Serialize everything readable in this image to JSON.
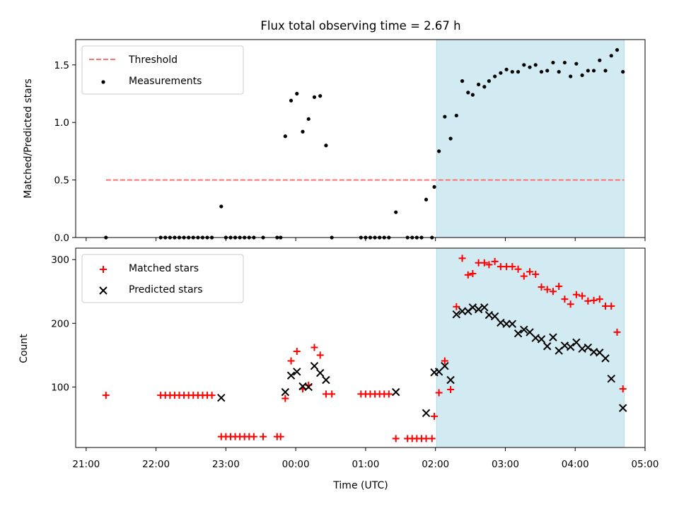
{
  "chart_data": [
    {
      "type": "scatter",
      "title": "Flux total observing time = 2.67 h",
      "xlabel": "",
      "ylabel": "Matched/Predicted stars",
      "ylim": [
        0,
        1.72
      ],
      "yticks": [
        0.0,
        0.5,
        1.0,
        1.5
      ],
      "ytick_labels": [
        "0.0",
        "0.5",
        "1.0",
        "1.5"
      ],
      "legend_position": "upper-left",
      "highlight_span": [
        "02:01",
        "04:42"
      ],
      "threshold": {
        "name": "Threshold",
        "value": 0.5,
        "x_range": [
          "21:17",
          "04:42"
        ],
        "color": "#ff7070",
        "style": "dashed"
      },
      "series": [
        {
          "name": "Measurements",
          "color": "#000000",
          "marker": "dot",
          "points": [
            [
              "21:17",
              0.0
            ],
            [
              "22:04",
              0.0
            ],
            [
              "22:08",
              0.0
            ],
            [
              "22:12",
              0.0
            ],
            [
              "22:16",
              0.0
            ],
            [
              "22:20",
              0.0
            ],
            [
              "22:24",
              0.0
            ],
            [
              "22:28",
              0.0
            ],
            [
              "22:32",
              0.0
            ],
            [
              "22:36",
              0.0
            ],
            [
              "22:40",
              0.0
            ],
            [
              "22:44",
              0.0
            ],
            [
              "22:48",
              0.0
            ],
            [
              "22:56",
              0.27
            ],
            [
              "23:00",
              0.0
            ],
            [
              "23:04",
              0.0
            ],
            [
              "23:08",
              0.0
            ],
            [
              "23:12",
              0.0
            ],
            [
              "23:16",
              0.0
            ],
            [
              "23:20",
              0.0
            ],
            [
              "23:24",
              0.0
            ],
            [
              "23:32",
              0.0
            ],
            [
              "23:44",
              0.0
            ],
            [
              "23:47",
              0.0
            ],
            [
              "23:51",
              0.88
            ],
            [
              "23:56",
              1.19
            ],
            [
              "00:01",
              1.25
            ],
            [
              "00:06",
              0.92
            ],
            [
              "00:11",
              1.03
            ],
            [
              "00:16",
              1.22
            ],
            [
              "00:21",
              1.23
            ],
            [
              "00:26",
              0.8
            ],
            [
              "00:31",
              0.0
            ],
            [
              "00:56",
              0.0
            ],
            [
              "01:00",
              0.0
            ],
            [
              "01:04",
              0.0
            ],
            [
              "01:08",
              0.0
            ],
            [
              "01:12",
              0.0
            ],
            [
              "01:16",
              0.0
            ],
            [
              "01:20",
              0.0
            ],
            [
              "01:26",
              0.22
            ],
            [
              "01:36",
              0.0
            ],
            [
              "01:40",
              0.0
            ],
            [
              "01:44",
              0.0
            ],
            [
              "01:48",
              0.0
            ],
            [
              "01:52",
              0.33
            ],
            [
              "01:57",
              0.0
            ],
            [
              "01:59",
              0.44
            ],
            [
              "02:03",
              0.75
            ],
            [
              "02:08",
              1.05
            ],
            [
              "02:13",
              0.86
            ],
            [
              "02:18",
              1.06
            ],
            [
              "02:23",
              1.36
            ],
            [
              "02:28",
              1.26
            ],
            [
              "02:32",
              1.24
            ],
            [
              "02:37",
              1.33
            ],
            [
              "02:42",
              1.31
            ],
            [
              "02:46",
              1.36
            ],
            [
              "02:51",
              1.4
            ],
            [
              "02:56",
              1.43
            ],
            [
              "03:01",
              1.46
            ],
            [
              "03:06",
              1.44
            ],
            [
              "03:11",
              1.44
            ],
            [
              "03:16",
              1.5
            ],
            [
              "03:21",
              1.48
            ],
            [
              "03:26",
              1.5
            ],
            [
              "03:31",
              1.44
            ],
            [
              "03:36",
              1.45
            ],
            [
              "03:41",
              1.52
            ],
            [
              "03:46",
              1.44
            ],
            [
              "03:51",
              1.52
            ],
            [
              "03:56",
              1.4
            ],
            [
              "04:01",
              1.51
            ],
            [
              "04:06",
              1.41
            ],
            [
              "04:11",
              1.45
            ],
            [
              "04:16",
              1.45
            ],
            [
              "04:21",
              1.54
            ],
            [
              "04:26",
              1.45
            ],
            [
              "04:31",
              1.58
            ],
            [
              "04:36",
              1.63
            ],
            [
              "04:41",
              1.44
            ]
          ]
        }
      ]
    },
    {
      "type": "scatter",
      "title": "",
      "xlabel": "Time (UTC)",
      "ylabel": "Count",
      "ylim": [
        5,
        318
      ],
      "yticks": [
        100,
        200,
        300
      ],
      "ytick_labels": [
        "100",
        "200",
        "300"
      ],
      "xticks": [
        "21:00",
        "22:00",
        "23:00",
        "00:00",
        "01:00",
        "02:00",
        "03:00",
        "04:00",
        "05:00"
      ],
      "legend_position": "upper-left",
      "highlight_span": [
        "02:01",
        "04:42"
      ],
      "series": [
        {
          "name": "Matched stars",
          "color": "#ff0000",
          "marker": "plus",
          "points": [
            [
              "21:17",
              87
            ],
            [
              "22:04",
              87
            ],
            [
              "22:08",
              87
            ],
            [
              "22:12",
              87
            ],
            [
              "22:16",
              87
            ],
            [
              "22:20",
              87
            ],
            [
              "22:24",
              87
            ],
            [
              "22:28",
              87
            ],
            [
              "22:32",
              87
            ],
            [
              "22:36",
              87
            ],
            [
              "22:40",
              87
            ],
            [
              "22:44",
              87
            ],
            [
              "22:48",
              87
            ],
            [
              "22:56",
              22
            ],
            [
              "23:00",
              22
            ],
            [
              "23:04",
              22
            ],
            [
              "23:08",
              22
            ],
            [
              "23:12",
              22
            ],
            [
              "23:16",
              22
            ],
            [
              "23:20",
              22
            ],
            [
              "23:24",
              22
            ],
            [
              "23:32",
              22
            ],
            [
              "23:44",
              22
            ],
            [
              "23:47",
              22
            ],
            [
              "23:51",
              82
            ],
            [
              "23:56",
              141
            ],
            [
              "00:01",
              156
            ],
            [
              "00:06",
              97
            ],
            [
              "00:11",
              103
            ],
            [
              "00:16",
              162
            ],
            [
              "00:21",
              150
            ],
            [
              "00:26",
              89
            ],
            [
              "00:31",
              89
            ],
            [
              "00:56",
              89
            ],
            [
              "01:00",
              89
            ],
            [
              "01:04",
              89
            ],
            [
              "01:08",
              89
            ],
            [
              "01:12",
              89
            ],
            [
              "01:16",
              89
            ],
            [
              "01:20",
              89
            ],
            [
              "01:26",
              19
            ],
            [
              "01:36",
              19
            ],
            [
              "01:40",
              19
            ],
            [
              "01:44",
              19
            ],
            [
              "01:48",
              19
            ],
            [
              "01:52",
              19
            ],
            [
              "01:57",
              19
            ],
            [
              "01:59",
              54
            ],
            [
              "02:03",
              91
            ],
            [
              "02:08",
              141
            ],
            [
              "02:13",
              96
            ],
            [
              "02:18",
              226
            ],
            [
              "02:23",
              302
            ],
            [
              "02:28",
              276
            ],
            [
              "02:32",
              278
            ],
            [
              "02:37",
              295
            ],
            [
              "02:42",
              295
            ],
            [
              "02:46",
              292
            ],
            [
              "02:51",
              297
            ],
            [
              "02:56",
              289
            ],
            [
              "03:01",
              289
            ],
            [
              "03:06",
              289
            ],
            [
              "03:11",
              285
            ],
            [
              "03:16",
              274
            ],
            [
              "03:21",
              281
            ],
            [
              "03:26",
              277
            ],
            [
              "03:31",
              257
            ],
            [
              "03:36",
              253
            ],
            [
              "03:41",
              250
            ],
            [
              "03:46",
              258
            ],
            [
              "03:51",
              238
            ],
            [
              "03:56",
              230
            ],
            [
              "04:01",
              245
            ],
            [
              "04:06",
              243
            ],
            [
              "04:11",
              235
            ],
            [
              "04:16",
              236
            ],
            [
              "04:21",
              238
            ],
            [
              "04:26",
              227
            ],
            [
              "04:31",
              227
            ],
            [
              "04:36",
              186
            ],
            [
              "04:41",
              97
            ]
          ]
        },
        {
          "name": "Predicted stars",
          "color": "#000000",
          "marker": "x",
          "points": [
            [
              "22:56",
              83
            ],
            [
              "23:51",
              92
            ],
            [
              "23:56",
              118
            ],
            [
              "00:01",
              124
            ],
            [
              "00:06",
              101
            ],
            [
              "00:11",
              100
            ],
            [
              "00:16",
              133
            ],
            [
              "00:21",
              122
            ],
            [
              "00:26",
              111
            ],
            [
              "01:26",
              92
            ],
            [
              "01:52",
              59
            ],
            [
              "01:59",
              123
            ],
            [
              "02:03",
              124
            ],
            [
              "02:08",
              133
            ],
            [
              "02:13",
              111
            ],
            [
              "02:18",
              214
            ],
            [
              "02:23",
              219
            ],
            [
              "02:28",
              219
            ],
            [
              "02:32",
              225
            ],
            [
              "02:37",
              222
            ],
            [
              "02:42",
              225
            ],
            [
              "02:46",
              213
            ],
            [
              "02:51",
              211
            ],
            [
              "02:56",
              201
            ],
            [
              "03:01",
              199
            ],
            [
              "03:06",
              199
            ],
            [
              "03:11",
              184
            ],
            [
              "03:16",
              190
            ],
            [
              "03:21",
              186
            ],
            [
              "03:26",
              177
            ],
            [
              "03:31",
              175
            ],
            [
              "03:36",
              164
            ],
            [
              "03:41",
              178
            ],
            [
              "03:46",
              157
            ],
            [
              "03:51",
              165
            ],
            [
              "03:56",
              163
            ],
            [
              "04:01",
              170
            ],
            [
              "04:06",
              160
            ],
            [
              "04:11",
              162
            ],
            [
              "04:16",
              155
            ],
            [
              "04:21",
              154
            ],
            [
              "04:26",
              145
            ],
            [
              "04:31",
              113
            ],
            [
              "04:41",
              67
            ]
          ]
        }
      ]
    }
  ],
  "colors": {
    "highlight": "#add8e6",
    "threshold": "#ff7070",
    "matched": "#ff0000",
    "predicted": "#000000",
    "measurements": "#000000"
  }
}
